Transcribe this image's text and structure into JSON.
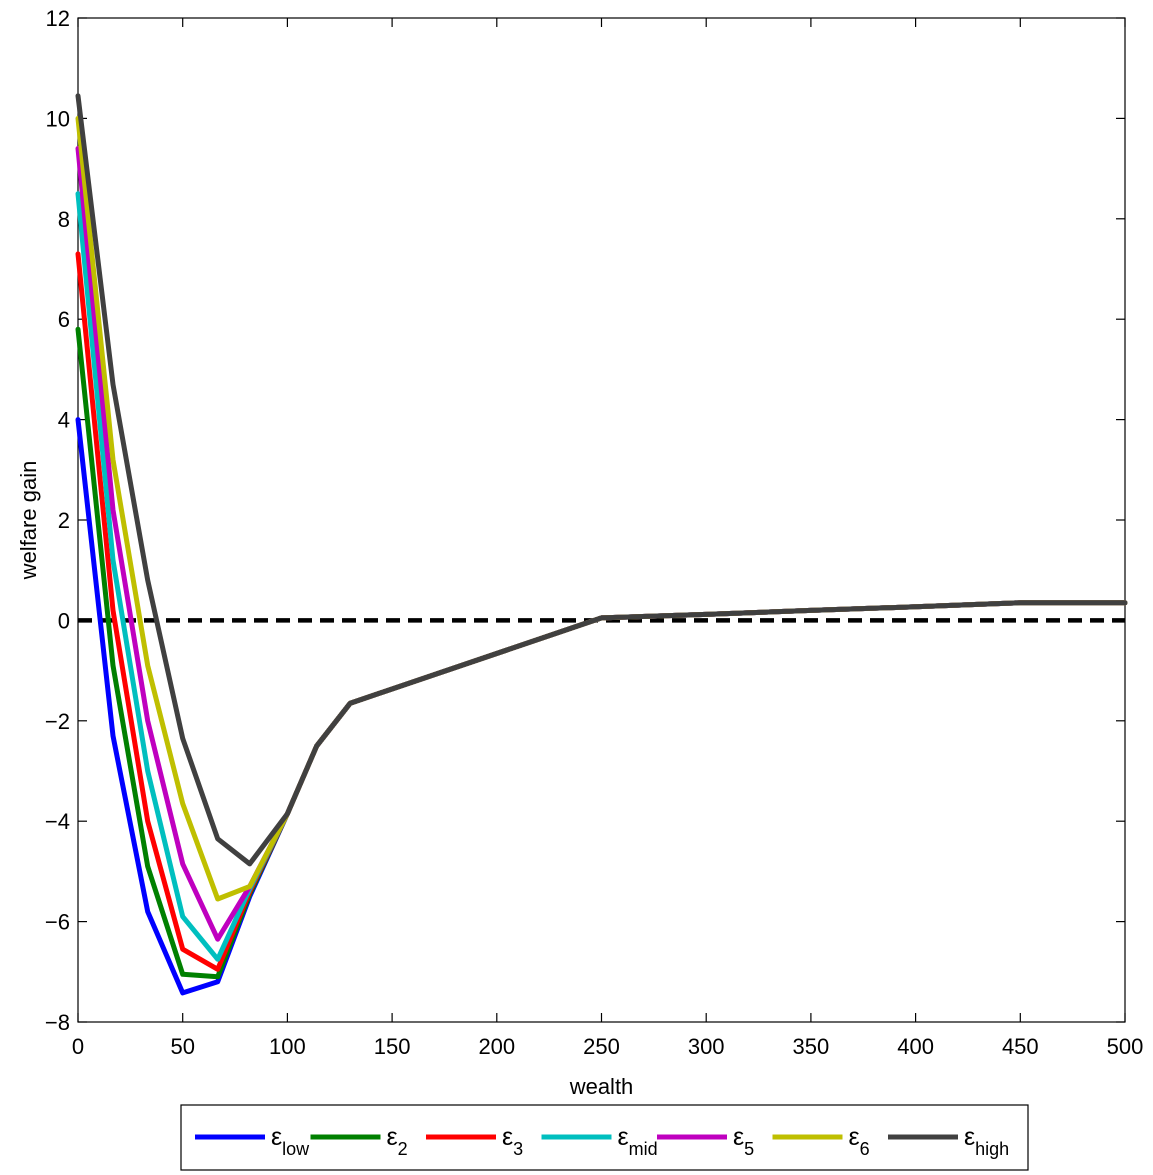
{
  "chart_data": {
    "type": "line",
    "title": "",
    "xlabel": "wealth",
    "ylabel": "welfare gain",
    "xlim": [
      0,
      500
    ],
    "ylim": [
      -8,
      12
    ],
    "xticks": [
      0,
      50,
      100,
      150,
      200,
      250,
      300,
      350,
      400,
      450,
      500
    ],
    "yticks": [
      -8,
      -6,
      -4,
      -2,
      0,
      2,
      4,
      6,
      8,
      10,
      12
    ],
    "xtick_labels": [
      "0",
      "50",
      "100",
      "150",
      "200",
      "250",
      "300",
      "350",
      "400",
      "450",
      "500"
    ],
    "ytick_labels": [
      "−8",
      "−6",
      "−4",
      "−2",
      "0",
      "2",
      "4",
      "6",
      "8",
      "10",
      "12"
    ],
    "grid": false,
    "legend_placement": "bottom, outside, horizontal",
    "x": [
      0,
      16.7,
      33.3,
      50,
      66.7,
      82,
      100,
      114,
      130,
      250,
      300,
      350,
      400,
      450,
      500
    ],
    "series": [
      {
        "name": "ε",
        "sub": "low",
        "color": "#0000ff",
        "values": [
          4.0,
          -2.3,
          -5.8,
          -7.42,
          -7.2,
          -5.5,
          -3.85,
          -2.5,
          -1.65,
          0.05,
          0.12,
          0.2,
          0.27,
          0.35,
          0.35
        ]
      },
      {
        "name": "ε",
        "sub": "2",
        "color": "#008000",
        "values": [
          5.8,
          -0.9,
          -4.9,
          -7.05,
          -7.1,
          -5.45,
          -3.85,
          -2.5,
          -1.65,
          0.05,
          0.12,
          0.2,
          0.27,
          0.35,
          0.35
        ]
      },
      {
        "name": "ε",
        "sub": "3",
        "color": "#ff0000",
        "values": [
          7.3,
          0.2,
          -4.0,
          -6.55,
          -6.95,
          -5.4,
          -3.85,
          -2.5,
          -1.65,
          0.05,
          0.12,
          0.2,
          0.27,
          0.35,
          0.35
        ]
      },
      {
        "name": "ε",
        "sub": "mid",
        "color": "#00bfbf",
        "values": [
          8.5,
          1.2,
          -3.0,
          -5.9,
          -6.75,
          -5.35,
          -3.85,
          -2.5,
          -1.65,
          0.05,
          0.12,
          0.2,
          0.27,
          0.35,
          0.35
        ]
      },
      {
        "name": "ε",
        "sub": "5",
        "color": "#bf00bf",
        "values": [
          9.4,
          2.2,
          -2.0,
          -4.85,
          -6.35,
          -5.3,
          -3.85,
          -2.5,
          -1.65,
          0.05,
          0.12,
          0.2,
          0.27,
          0.35,
          0.35
        ]
      },
      {
        "name": "ε",
        "sub": "6",
        "color": "#bfbf00",
        "values": [
          10.0,
          3.2,
          -0.9,
          -3.65,
          -5.55,
          -5.3,
          -3.85,
          -2.5,
          -1.65,
          0.05,
          0.12,
          0.2,
          0.27,
          0.35,
          0.35
        ]
      },
      {
        "name": "ε",
        "sub": "high",
        "color": "#404040",
        "values": [
          10.45,
          4.7,
          0.8,
          -2.35,
          -4.35,
          -4.85,
          -3.85,
          -2.5,
          -1.65,
          0.05,
          0.12,
          0.2,
          0.27,
          0.35,
          0.35
        ]
      }
    ],
    "reference_line": {
      "y": 0,
      "style": "dashed",
      "color": "#000000"
    }
  }
}
